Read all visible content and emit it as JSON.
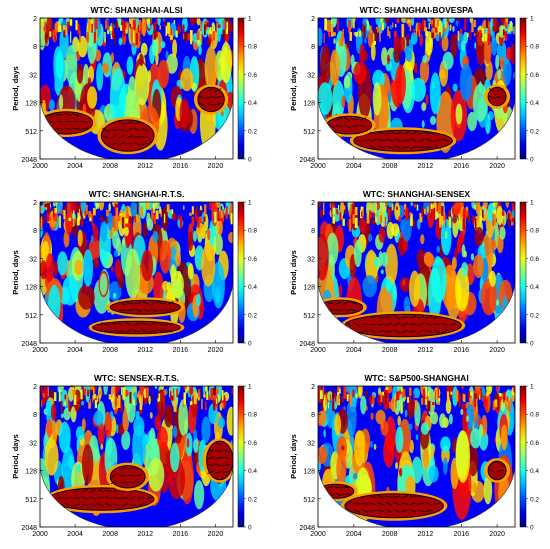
{
  "figure": {
    "description": "Six wavelet coherence (WTC) heatmaps"
  },
  "chart_data": [
    {
      "type": "heatmap",
      "title": "WTC: SHANGHAI-ALSI",
      "ylabel": "Period, days",
      "x_ticks": [
        "2000",
        "2004",
        "2008",
        "2012",
        "2016",
        "2020"
      ],
      "y_ticks": [
        "2",
        "8",
        "32",
        "128",
        "512",
        "2048"
      ],
      "colorbar_ticks": [
        "1",
        "0.8",
        "0.6",
        "0.4",
        "0.2",
        "0"
      ],
      "xlim": [
        2000,
        2022
      ],
      "ylim_log2": [
        1,
        11
      ],
      "high_coherence_regions": [
        {
          "start": 2007,
          "end": 2013,
          "period_low": 300,
          "period_high": 1400
        },
        {
          "start": 2000,
          "end": 2006,
          "period_low": 200,
          "period_high": 600
        },
        {
          "start": 2018,
          "end": 2021,
          "period_low": 60,
          "period_high": 200
        }
      ]
    },
    {
      "type": "heatmap",
      "title": "WTC: SHANGHAI-BOVESPA",
      "ylabel": "Period, days",
      "x_ticks": [
        "2000",
        "2004",
        "2008",
        "2012",
        "2016",
        "2020"
      ],
      "y_ticks": [
        "2",
        "8",
        "32",
        "128",
        "512",
        "2048"
      ],
      "colorbar_ticks": [
        "1",
        "0.8",
        "0.6",
        "0.4",
        "0.2",
        "0"
      ],
      "xlim": [
        2000,
        2022
      ],
      "ylim_log2": [
        1,
        11
      ],
      "high_coherence_regions": [
        {
          "start": 2004,
          "end": 2015,
          "period_low": 500,
          "period_high": 1400
        },
        {
          "start": 2001,
          "end": 2006,
          "period_low": 250,
          "period_high": 600
        },
        {
          "start": 2019,
          "end": 2021,
          "period_low": 60,
          "period_high": 150
        }
      ]
    },
    {
      "type": "heatmap",
      "title": "WTC: SHANGHAI-R.T.S.",
      "ylabel": "Period, days",
      "x_ticks": [
        "2000",
        "2004",
        "2008",
        "2012",
        "2016",
        "2020"
      ],
      "y_ticks": [
        "2",
        "8",
        "32",
        "128",
        "512",
        "2048"
      ],
      "colorbar_ticks": [
        "1",
        "0.8",
        "0.6",
        "0.4",
        "0.2",
        "0"
      ],
      "xlim": [
        2000,
        2022
      ],
      "ylim_log2": [
        1,
        11
      ],
      "high_coherence_regions": [
        {
          "start": 2006,
          "end": 2016,
          "period_low": 700,
          "period_high": 1300
        },
        {
          "start": 2008,
          "end": 2016,
          "period_low": 250,
          "period_high": 500
        }
      ]
    },
    {
      "type": "heatmap",
      "title": "WTC: SHANGHAI-SENSEX",
      "ylabel": "Period, days",
      "x_ticks": [
        "2000",
        "2004",
        "2008",
        "2012",
        "2016",
        "2020"
      ],
      "y_ticks": [
        "2",
        "8",
        "32",
        "128",
        "512",
        "2048"
      ],
      "colorbar_ticks": [
        "1",
        "0.8",
        "0.6",
        "0.4",
        "0.2",
        "0"
      ],
      "xlim": [
        2000,
        2022
      ],
      "ylim_log2": [
        1,
        11
      ],
      "high_coherence_regions": [
        {
          "start": 2003,
          "end": 2016,
          "period_low": 500,
          "period_high": 1500
        },
        {
          "start": 2000,
          "end": 2005,
          "period_low": 250,
          "period_high": 500
        }
      ]
    },
    {
      "type": "heatmap",
      "title": "WTC: SENSEX-R.T.S.",
      "ylabel": "Period, days",
      "x_ticks": [
        "2000",
        "2004",
        "2008",
        "2012",
        "2016",
        "2020"
      ],
      "y_ticks": [
        "2",
        "8",
        "32",
        "128",
        "512",
        "2048"
      ],
      "colorbar_ticks": [
        "1",
        "0.8",
        "0.6",
        "0.4",
        "0.2",
        "0"
      ],
      "xlim": [
        2000,
        2022
      ],
      "ylim_log2": [
        1,
        11
      ],
      "high_coherence_regions": [
        {
          "start": 2001,
          "end": 2013,
          "period_low": 300,
          "period_high": 900
        },
        {
          "start": 2008,
          "end": 2012,
          "period_low": 100,
          "period_high": 300
        },
        {
          "start": 2019,
          "end": 2022,
          "period_low": 30,
          "period_high": 200
        }
      ]
    },
    {
      "type": "heatmap",
      "title": "WTC: S&P500-SHANGHAI",
      "ylabel": "Period, days",
      "x_ticks": [
        "2000",
        "2004",
        "2008",
        "2012",
        "2016",
        "2020"
      ],
      "y_ticks": [
        "2",
        "8",
        "32",
        "128",
        "512",
        "2048"
      ],
      "colorbar_ticks": [
        "1",
        "0.8",
        "0.6",
        "0.4",
        "0.2",
        "0"
      ],
      "xlim": [
        2000,
        2022
      ],
      "ylim_log2": [
        1,
        11
      ],
      "high_coherence_regions": [
        {
          "start": 2003,
          "end": 2014,
          "period_low": 400,
          "period_high": 1300
        },
        {
          "start": 2000,
          "end": 2004,
          "period_low": 250,
          "period_high": 500
        },
        {
          "start": 2019,
          "end": 2021,
          "period_low": 80,
          "period_high": 200
        }
      ]
    }
  ]
}
